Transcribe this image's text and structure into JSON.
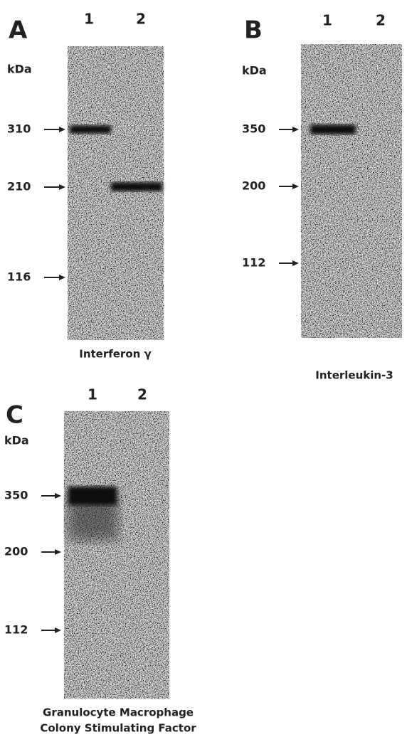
{
  "panels": [
    {
      "letter": "A",
      "lanes": [
        "1",
        "2"
      ],
      "unit": "kDa",
      "markers": [
        310,
        210,
        116
      ],
      "caption": [
        "Interferon γ"
      ]
    },
    {
      "letter": "B",
      "lanes": [
        "1",
        "2"
      ],
      "unit": "kDa",
      "markers": [
        350,
        200,
        112
      ],
      "caption": [
        "Interleukin-3"
      ]
    },
    {
      "letter": "C",
      "lanes": [
        "1",
        "2"
      ],
      "unit": "kDa",
      "markers": [
        350,
        200,
        112
      ],
      "caption": [
        "Granulocyte Macrophage",
        "Colony Stimulating Factor"
      ]
    }
  ]
}
